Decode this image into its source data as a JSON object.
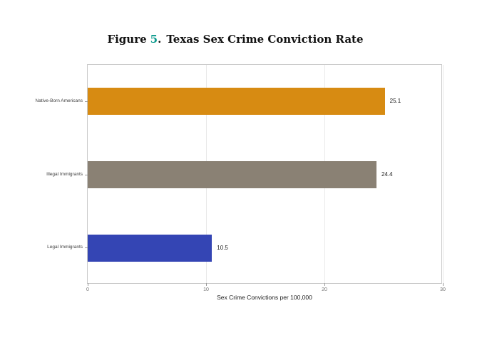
{
  "figure": {
    "label_prefix": "Figure",
    "label_number": "5",
    "label_separator": ".",
    "title": "Texas Sex Crime Conviction Rate",
    "number_color": "#0f9b8e"
  },
  "chart_data": {
    "type": "bar",
    "orientation": "horizontal",
    "title": "Figure 5. Texas Sex Crime Conviction Rate",
    "categories": [
      "Native-Born Americans",
      "Illegal Immigrants",
      "Legal Immigrants"
    ],
    "values": [
      25.1,
      24.4,
      10.5
    ],
    "value_labels": [
      "25.1",
      "24.4",
      "10.5"
    ],
    "colors": [
      "#d78b12",
      "#8a8174",
      "#3445b4"
    ],
    "xlabel": "Sex Crime Convictions per 100,000",
    "ylabel": "",
    "xlim": [
      0,
      30
    ],
    "xticks": [
      0,
      10,
      20,
      30
    ],
    "grid": "vertical",
    "gridline_color": "#e9e9e9",
    "panel_border_color": "#c9c9c9",
    "legend": "none"
  }
}
